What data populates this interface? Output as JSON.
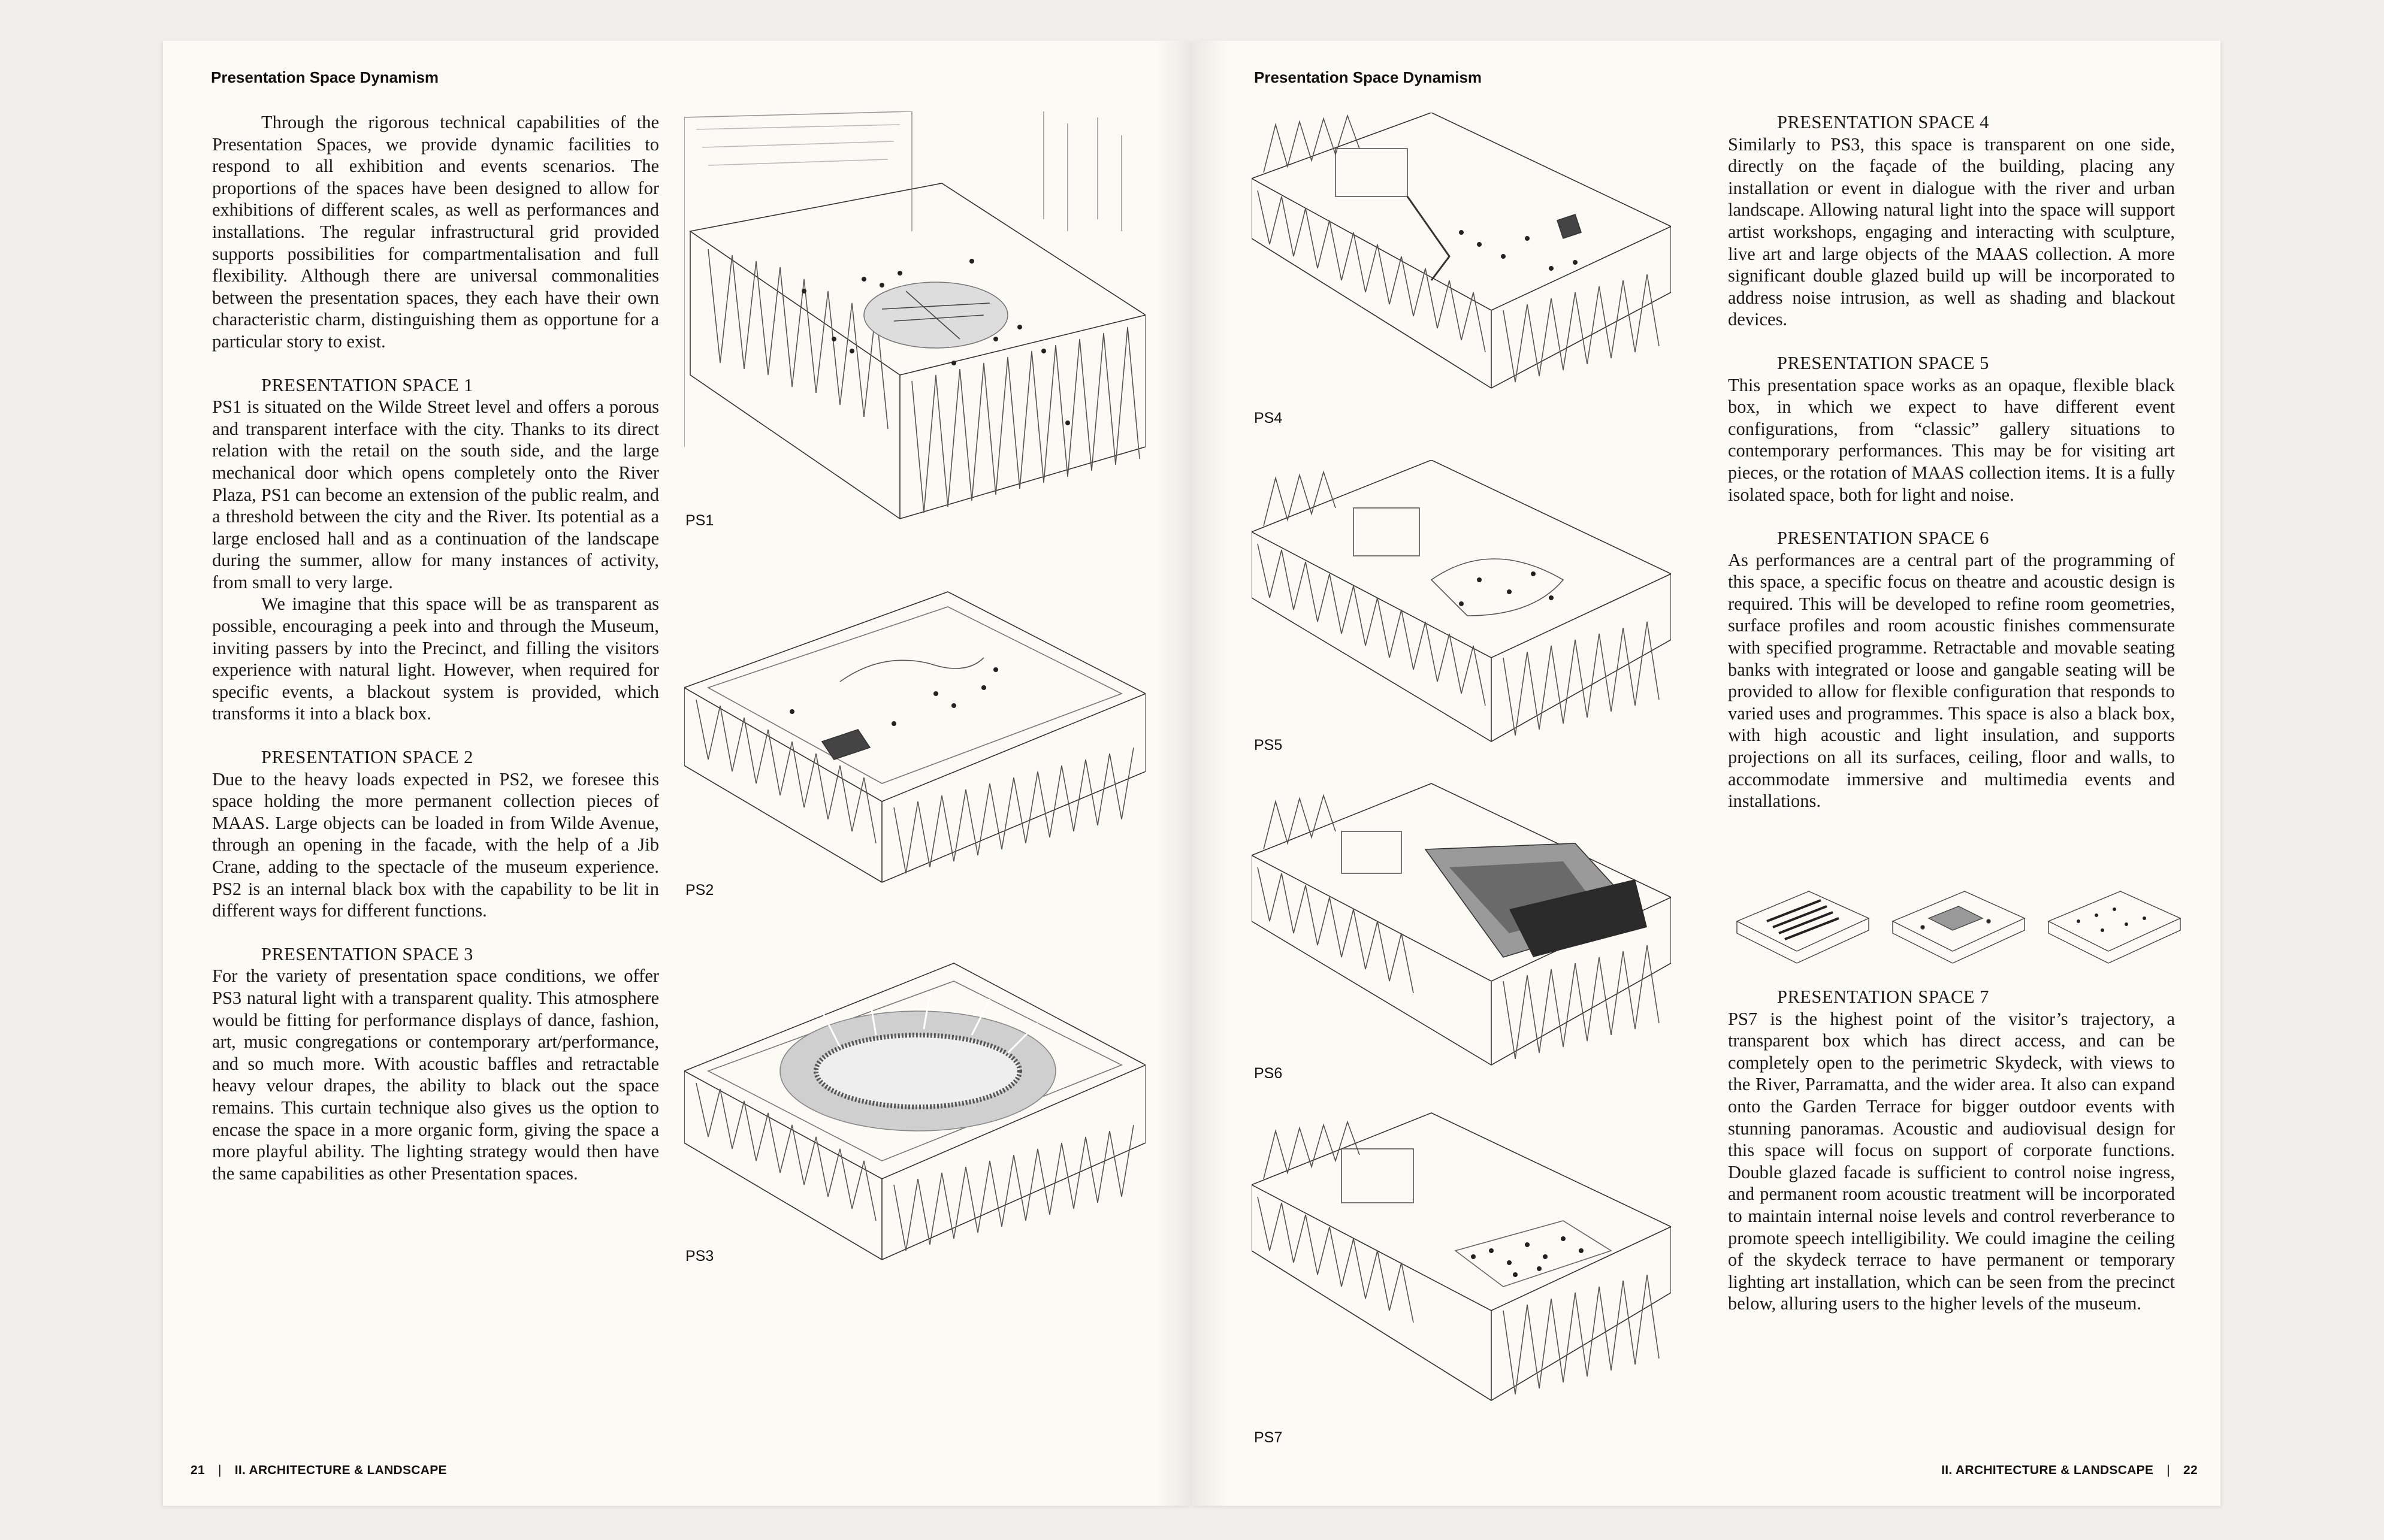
{
  "left": {
    "header": "Presentation Space Dynamism",
    "intro": "Through the rigorous technical capabilities of the Presentation Spaces, we provide dynamic facilities to respond to all exhibition and events scenarios. The proportions of the spaces have been designed to allow for exhibitions of different scales, as well as performances and installations. The regular infrastructural grid provided supports possibilities for compartmentalisation and full flexibility. Although there are universal commonalities between the presentation spaces, they each have their own characteristic charm, distinguishing them as opportune for a particular story to exist.",
    "ps1_title": "PRESENTATION SPACE 1",
    "ps1_p1": "PS1 is situated on the Wilde Street level and offers a porous and transparent interface with the city. Thanks to its direct relation with the retail on the south side, and the large mechanical door which opens completely onto the River Plaza, PS1 can become an extension of the public realm, and a threshold between the city and the River. Its potential as a large enclosed hall and as a continuation of the landscape during the summer, allow for many instances of activity, from small to very large.",
    "ps1_p2": "We imagine that this space will be as transparent as possible, encouraging a peek into and through the Museum, inviting passers by into the Precinct, and filling the visitors experience with natural light. However, when required for specific events, a blackout system is provided, which transforms it into a black box.",
    "ps2_title": "PRESENTATION SPACE 2",
    "ps2_p": "Due to the heavy loads expected in PS2, we foresee this space holding the more permanent collection pieces of MAAS. Large objects can be loaded in from Wilde Avenue, through an opening in the facade, with the help of a Jib Crane, adding to the spectacle of the museum experience. PS2 is an internal black box with the capability to be lit in different ways for different functions.",
    "ps3_title": "PRESENTATION SPACE 3",
    "ps3_p": "For the variety of presentation space conditions, we offer PS3 natural light with a transparent quality. This atmosphere would be fitting for performance displays of dance, fashion, art, music congregations or contemporary art/performance, and so much more. With acoustic baffles and retractable heavy velour drapes, the ability to black out the space remains. This curtain technique also gives us the option to encase the space in a more organic form, giving the space a more playful ability. The lighting strategy would then have the same capabilities as other Presentation spaces.",
    "fig_labels": [
      "PS1",
      "PS2",
      "PS3"
    ],
    "footer_page": "21",
    "footer_sep": "|",
    "footer_section": "II. ARCHITECTURE & LANDSCAPE"
  },
  "right": {
    "header": "Presentation Space Dynamism",
    "ps4_title": "PRESENTATION SPACE 4",
    "ps4_p": "Similarly to PS3, this space is transparent on one side, directly on the façade of the building, placing any installation or event in dialogue with the river and urban landscape. Allowing natural light into the space will support artist workshops, engaging and interacting with sculpture, live art and large objects of the MAAS collection. A more significant double glazed build up will be incorporated to address noise intrusion, as well as shading and blackout devices.",
    "ps5_title": "PRESENTATION SPACE 5",
    "ps5_p": "This presentation space works as an opaque, flexible black box, in which we expect to have different event configurations, from “classic” gallery situations to contemporary performances. This may be for visiting art pieces, or the rotation of MAAS collection items. It is a fully isolated space, both for light and noise.",
    "ps6_title": "PRESENTATION SPACE 6",
    "ps6_p": "As performances are a central part of the programming of this space, a specific focus on theatre and acoustic design is required. This will be developed to refine room geometries, surface profiles and room acoustic finishes commensurate with specified programme. Retractable and movable seating banks with integrated or loose and gangable seating will be provided to allow for flexible configuration that responds to varied uses and programmes. This space is also a black box, with high acoustic and light insulation, and supports projections on all its surfaces, ceiling, floor and walls, to accommodate immersive and multimedia events and installations.",
    "ps7_title": "PRESENTATION SPACE 7",
    "ps7_p": "PS7 is the highest point of the visitor’s trajectory, a transparent box which has direct access, and can be completely open to the perimetric Skydeck, with views to the River, Parramatta, and the wider area. It also can expand onto the Garden Terrace for bigger outdoor events with stunning panoramas. Acoustic and audiovisual design for this space will focus on support of corporate functions. Double glazed facade is sufficient to control noise ingress, and permanent room acoustic treatment will be incorporated to maintain internal noise levels and control reverberance to promote speech intelligibility. We could imagine the ceiling of the skydeck terrace to have permanent or temporary lighting art installation, which can be seen from the precinct below, alluring users to the higher levels of the museum.",
    "fig_labels": [
      "PS4",
      "PS5",
      "PS6",
      "PS7"
    ],
    "footer_section": "II. ARCHITECTURE & LANDSCAPE",
    "footer_sep": "|",
    "footer_page": "22"
  }
}
